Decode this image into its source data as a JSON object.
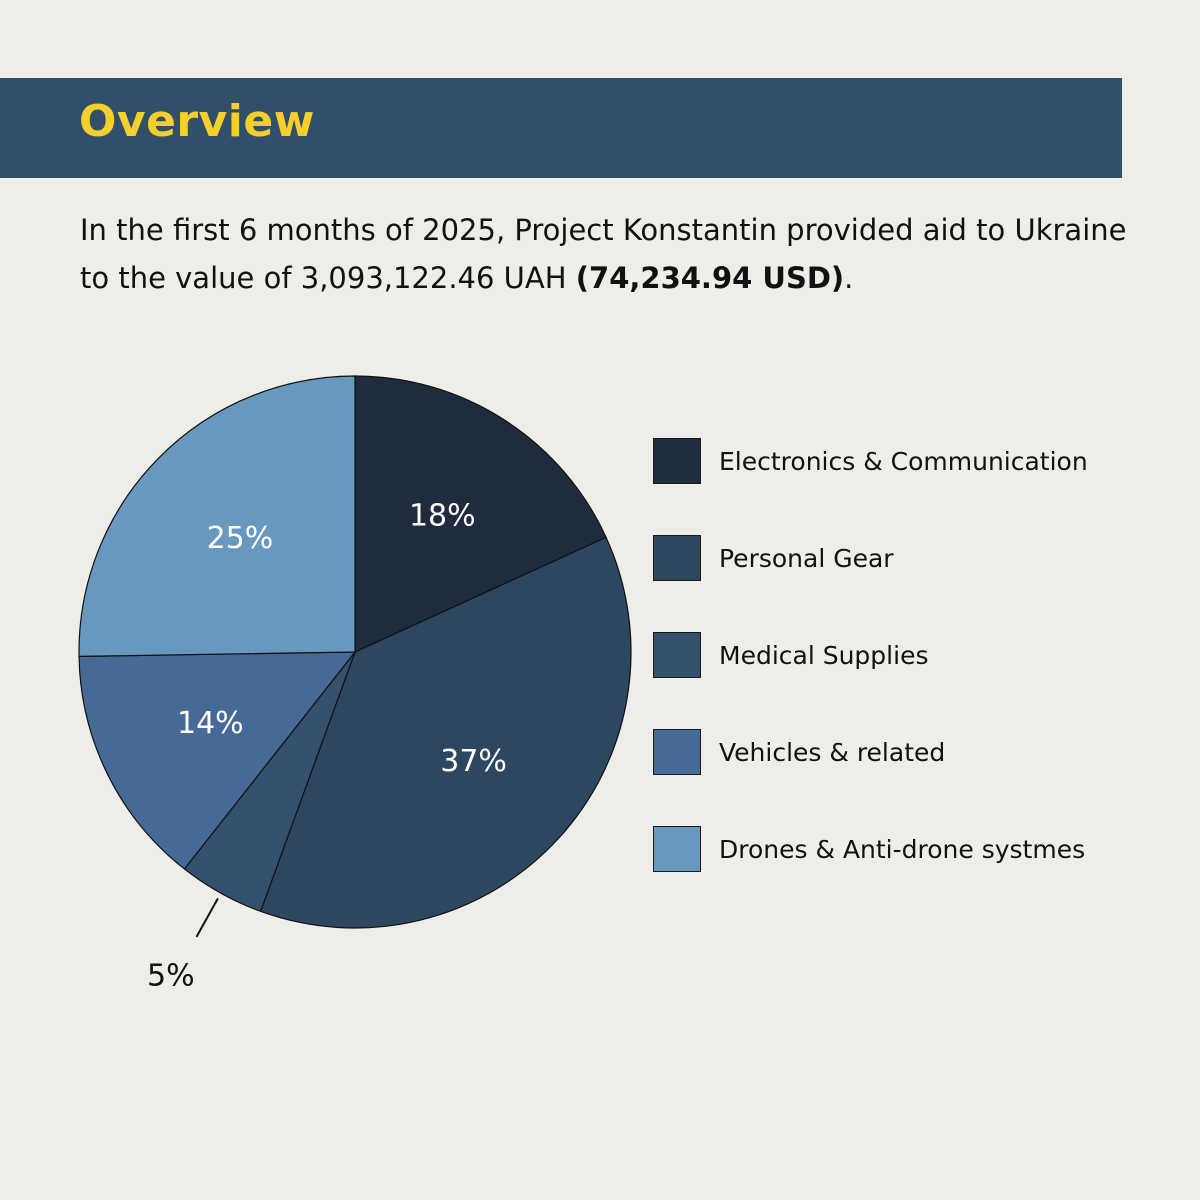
{
  "header": {
    "title": "Overview",
    "band_color": "#304f6b",
    "title_color": "#f7cf2a"
  },
  "intro": {
    "text_plain": "In the first 6 months of 2025, Project Konstantin provided aid to Ukraine to the value of 3,093,122.46 UAH",
    "text_bold": "(74,234.94 USD)",
    "text_end": "."
  },
  "chart_data": {
    "type": "pie",
    "title": "",
    "start": "12 o'clock, clockwise",
    "slices": [
      {
        "name": "Electronics & Communication",
        "value": 18,
        "label": "18%",
        "color": "#1e2c3e",
        "label_color": "#ffffff",
        "label_position": "inside"
      },
      {
        "name": "Personal Gear",
        "value": 37,
        "label": "37%",
        "color": "#2d4760",
        "label_color": "#ffffff",
        "label_position": "inside"
      },
      {
        "name": "Medical Supplies",
        "value": 5,
        "label": "5%",
        "color": "#33506c",
        "label_color": "#111111",
        "label_position": "outside-leader"
      },
      {
        "name": "Vehicles & related",
        "value": 14,
        "label": "14%",
        "color": "#456a96",
        "label_color": "#ffffff",
        "label_position": "inside"
      },
      {
        "name": "Drones & Anti-drone systmes",
        "value": 25,
        "label": "25%",
        "color": "#6898be",
        "label_color": "#ffffff",
        "label_position": "inside"
      }
    ],
    "legend_position": "right"
  }
}
